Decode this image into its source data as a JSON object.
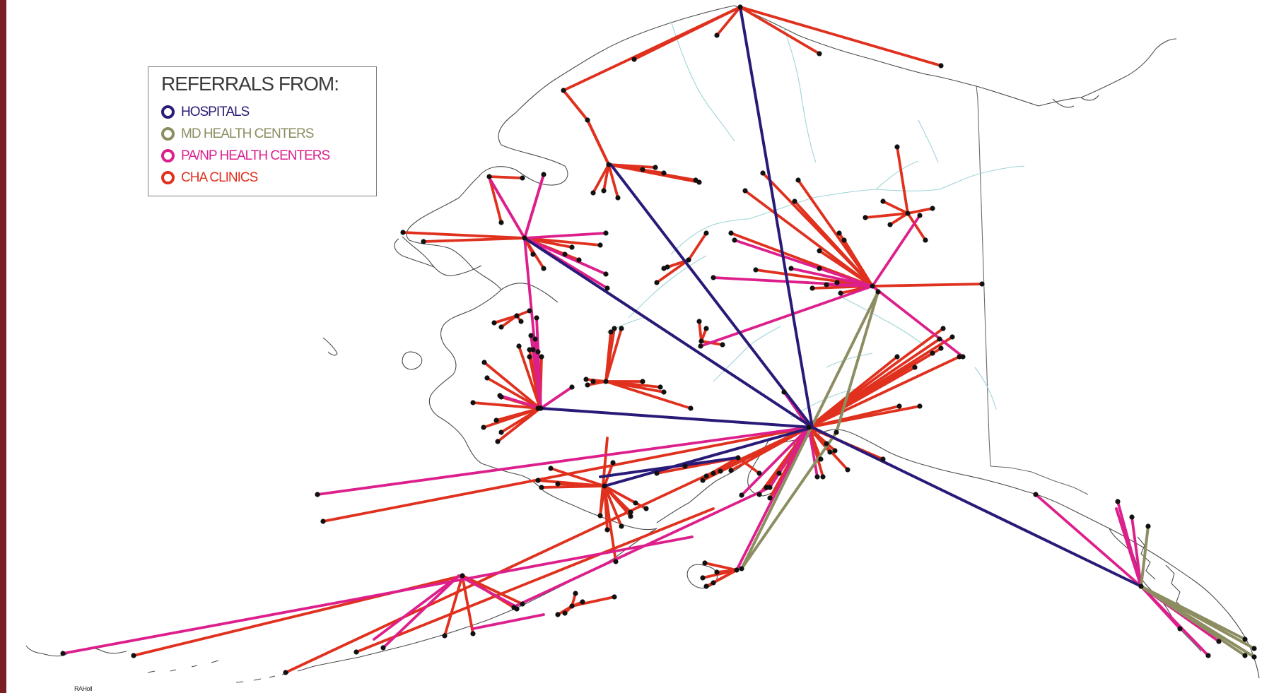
{
  "legend": {
    "title": "REFERRALS FROM:",
    "items": [
      {
        "label": "HOSPITALS",
        "color": "#2a1a78"
      },
      {
        "label": "MD HEALTH CENTERS",
        "color": "#8d8d62"
      },
      {
        "label": "PA/NP HEALTH CENTERS",
        "color": "#dd1f8c"
      },
      {
        "label": "CHA CLINICS",
        "color": "#e0301e"
      }
    ]
  },
  "credit": "RAHoll",
  "colors": {
    "frame": "#7a1f24",
    "coastline": "#4a4a4a",
    "rivers": "#9fd4d8",
    "node": "#111111"
  }
}
